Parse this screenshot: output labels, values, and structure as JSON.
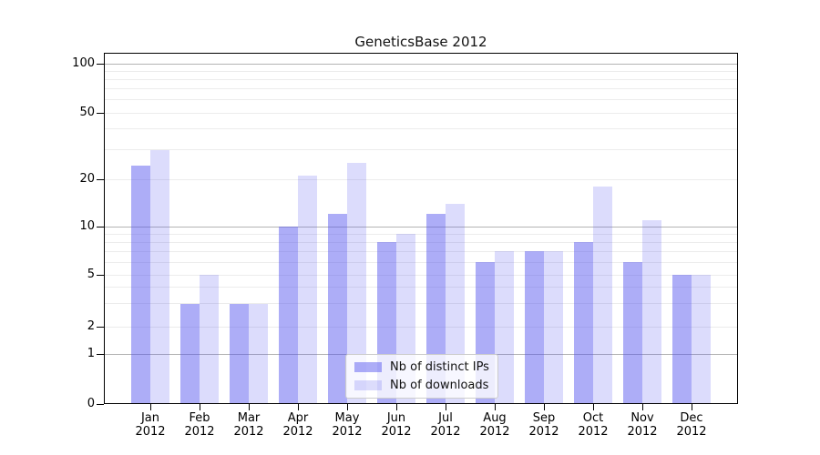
{
  "title": "GeneticsBase 2012",
  "chart_data": {
    "type": "bar",
    "title": "GeneticsBase 2012",
    "categories": [
      "Jan",
      "Feb",
      "Mar",
      "Apr",
      "May",
      "Jun",
      "Jul",
      "Aug",
      "Sep",
      "Oct",
      "Nov",
      "Dec"
    ],
    "category_year": "2012",
    "series": [
      {
        "name": "Nb of distinct IPs",
        "values": [
          24,
          3,
          3,
          10,
          12,
          8,
          12,
          6,
          7,
          8,
          6,
          5
        ],
        "color": "rgba(80,80,238,0.47)"
      },
      {
        "name": "Nb of downloads",
        "values": [
          30,
          5,
          3,
          21,
          25,
          9,
          14,
          7,
          7,
          18,
          11,
          5
        ],
        "color": "rgba(80,80,238,0.20)"
      }
    ],
    "ylabel": "",
    "xlabel": "",
    "ylim": [
      0,
      100
    ],
    "yaxis": {
      "scale": "pseudo-log",
      "tick_labels": [
        "0",
        "1",
        "2",
        "5",
        "10",
        "20",
        "50",
        "100"
      ],
      "tick_values": [
        0,
        1,
        2,
        5,
        10,
        20,
        50,
        100
      ],
      "major_gridlines": [
        1,
        10,
        100
      ],
      "minor_gridlines": [
        2,
        3,
        4,
        5,
        6,
        7,
        8,
        9,
        20,
        30,
        40,
        50,
        60,
        70,
        80,
        90
      ]
    },
    "grid": "on",
    "legend_position": "bottom-center"
  },
  "palette": {
    "bar_dark_on_white": "#acacf3",
    "bar_light_on_white": "#dcdcf9",
    "major_grid": "#b3b3b3",
    "minor_grid": "#ececec",
    "spine": "#000000",
    "legend_border": "#cccccc"
  }
}
